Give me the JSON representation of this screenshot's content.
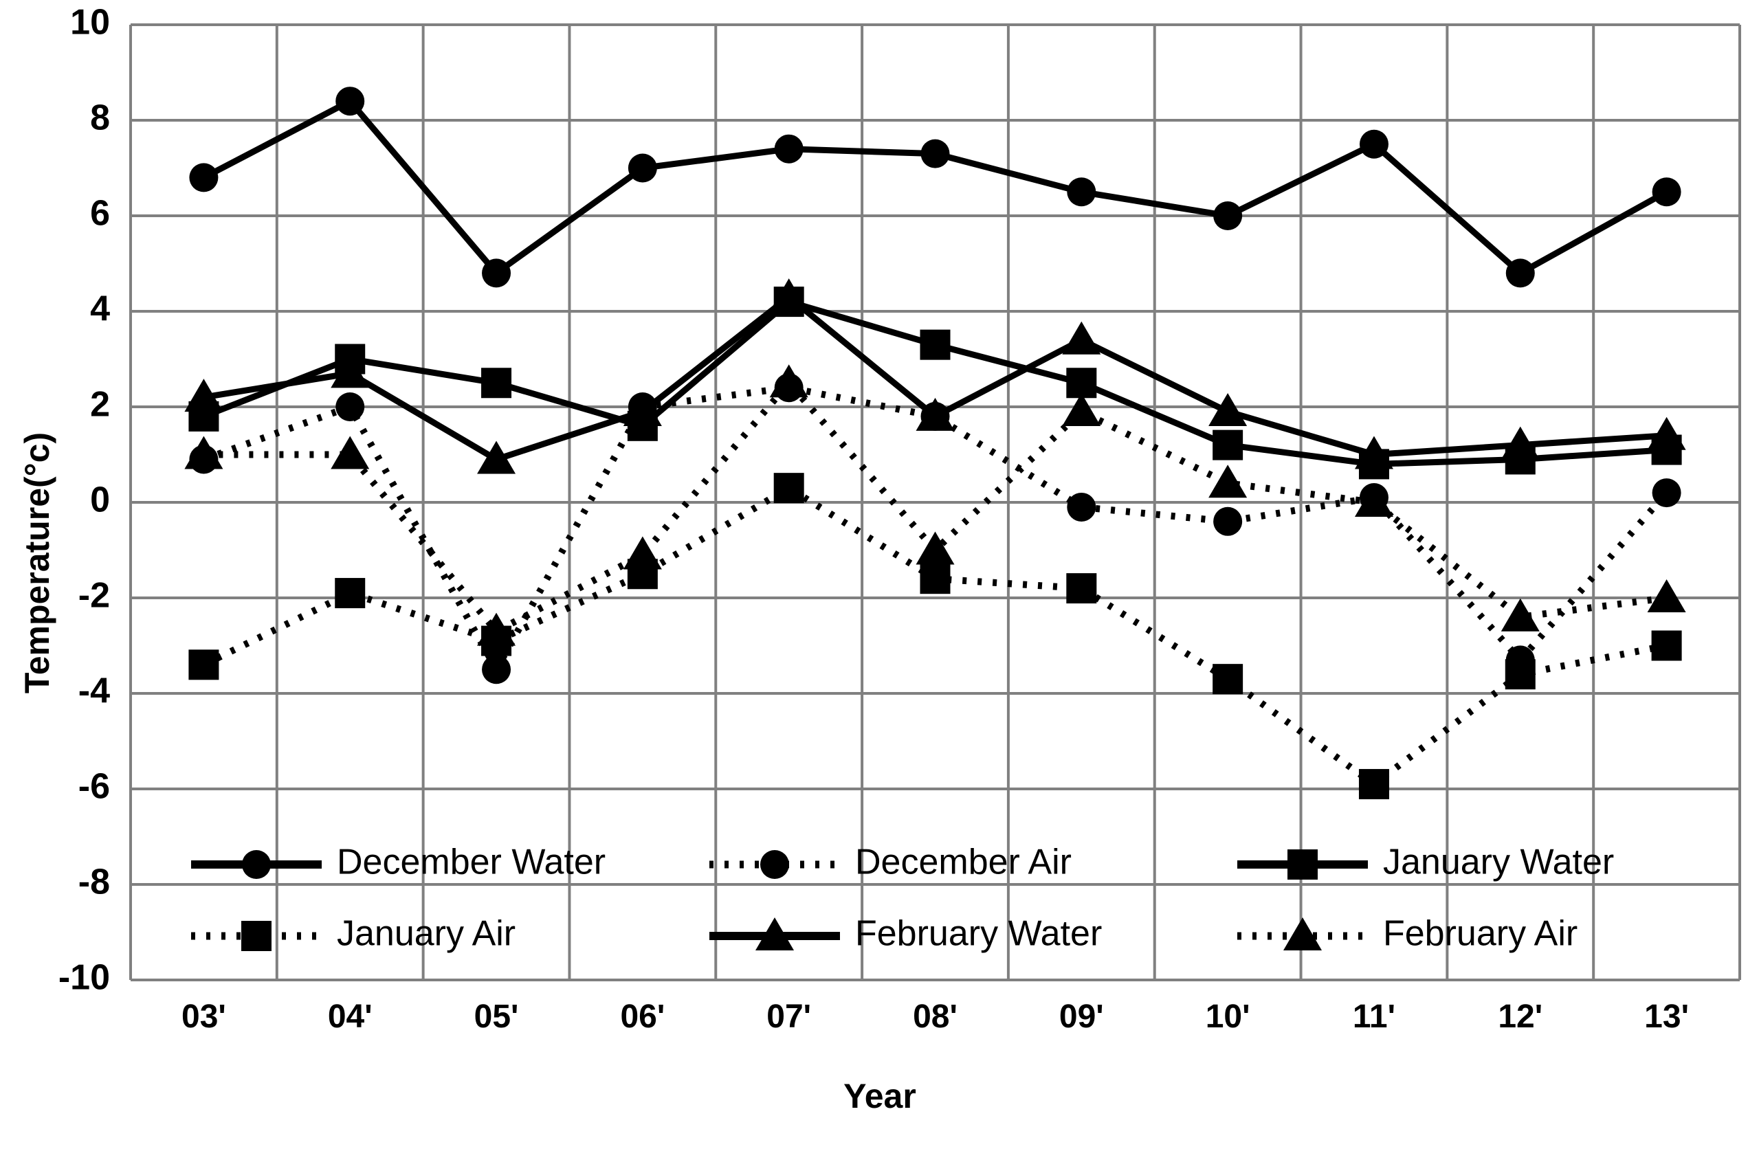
{
  "chart_data": {
    "type": "line",
    "title": "",
    "xlabel": "Year",
    "ylabel": "Temperature(°c)",
    "x_categories": [
      "03'",
      "04'",
      "05'",
      "06'",
      "07'",
      "08'",
      "09'",
      "10'",
      "11'",
      "12'",
      "13'"
    ],
    "y_ticks": [
      "10",
      "8",
      "6",
      "4",
      "2",
      "0",
      "-2",
      "-4",
      "-6",
      "-8",
      "-10"
    ],
    "y_tick_values": [
      10,
      8,
      6,
      4,
      2,
      0,
      -2,
      -4,
      -6,
      -8,
      -10
    ],
    "ylim": [
      -10,
      10
    ],
    "grid": true,
    "legend_position": "inside-bottom-two-rows",
    "series": [
      {
        "name": "December Water",
        "line": "solid",
        "marker": "circle",
        "values": [
          6.8,
          8.4,
          4.8,
          7.0,
          7.4,
          7.3,
          6.5,
          6.0,
          7.5,
          4.8,
          6.5
        ]
      },
      {
        "name": "December Air",
        "line": "dotted",
        "marker": "circle",
        "values": [
          0.9,
          2.0,
          -3.5,
          2.0,
          2.4,
          1.8,
          -0.1,
          -0.4,
          0.1,
          -3.3,
          0.2
        ]
      },
      {
        "name": "January Water",
        "line": "solid",
        "marker": "square",
        "values": [
          1.8,
          3.0,
          2.5,
          1.6,
          4.2,
          3.3,
          2.5,
          1.2,
          0.8,
          0.9,
          1.1
        ]
      },
      {
        "name": "January Air",
        "line": "dotted",
        "marker": "square",
        "values": [
          -3.4,
          -1.9,
          -2.9,
          -1.5,
          0.3,
          -1.6,
          -1.8,
          -3.7,
          -5.9,
          -3.6,
          -3.0
        ]
      },
      {
        "name": "February Water",
        "line": "solid",
        "marker": "triangle",
        "values": [
          2.2,
          2.7,
          0.9,
          1.9,
          4.3,
          1.8,
          3.4,
          1.9,
          1.0,
          1.2,
          1.4
        ]
      },
      {
        "name": "February Air",
        "line": "dotted",
        "marker": "triangle",
        "values": [
          1.0,
          1.0,
          -2.7,
          -1.1,
          2.5,
          -1.0,
          1.9,
          0.4,
          0.0,
          -2.4,
          -2.0
        ]
      }
    ],
    "colors": {
      "series": "#000000",
      "grid": "#808080",
      "background": "#ffffff",
      "text": "#000000"
    }
  }
}
